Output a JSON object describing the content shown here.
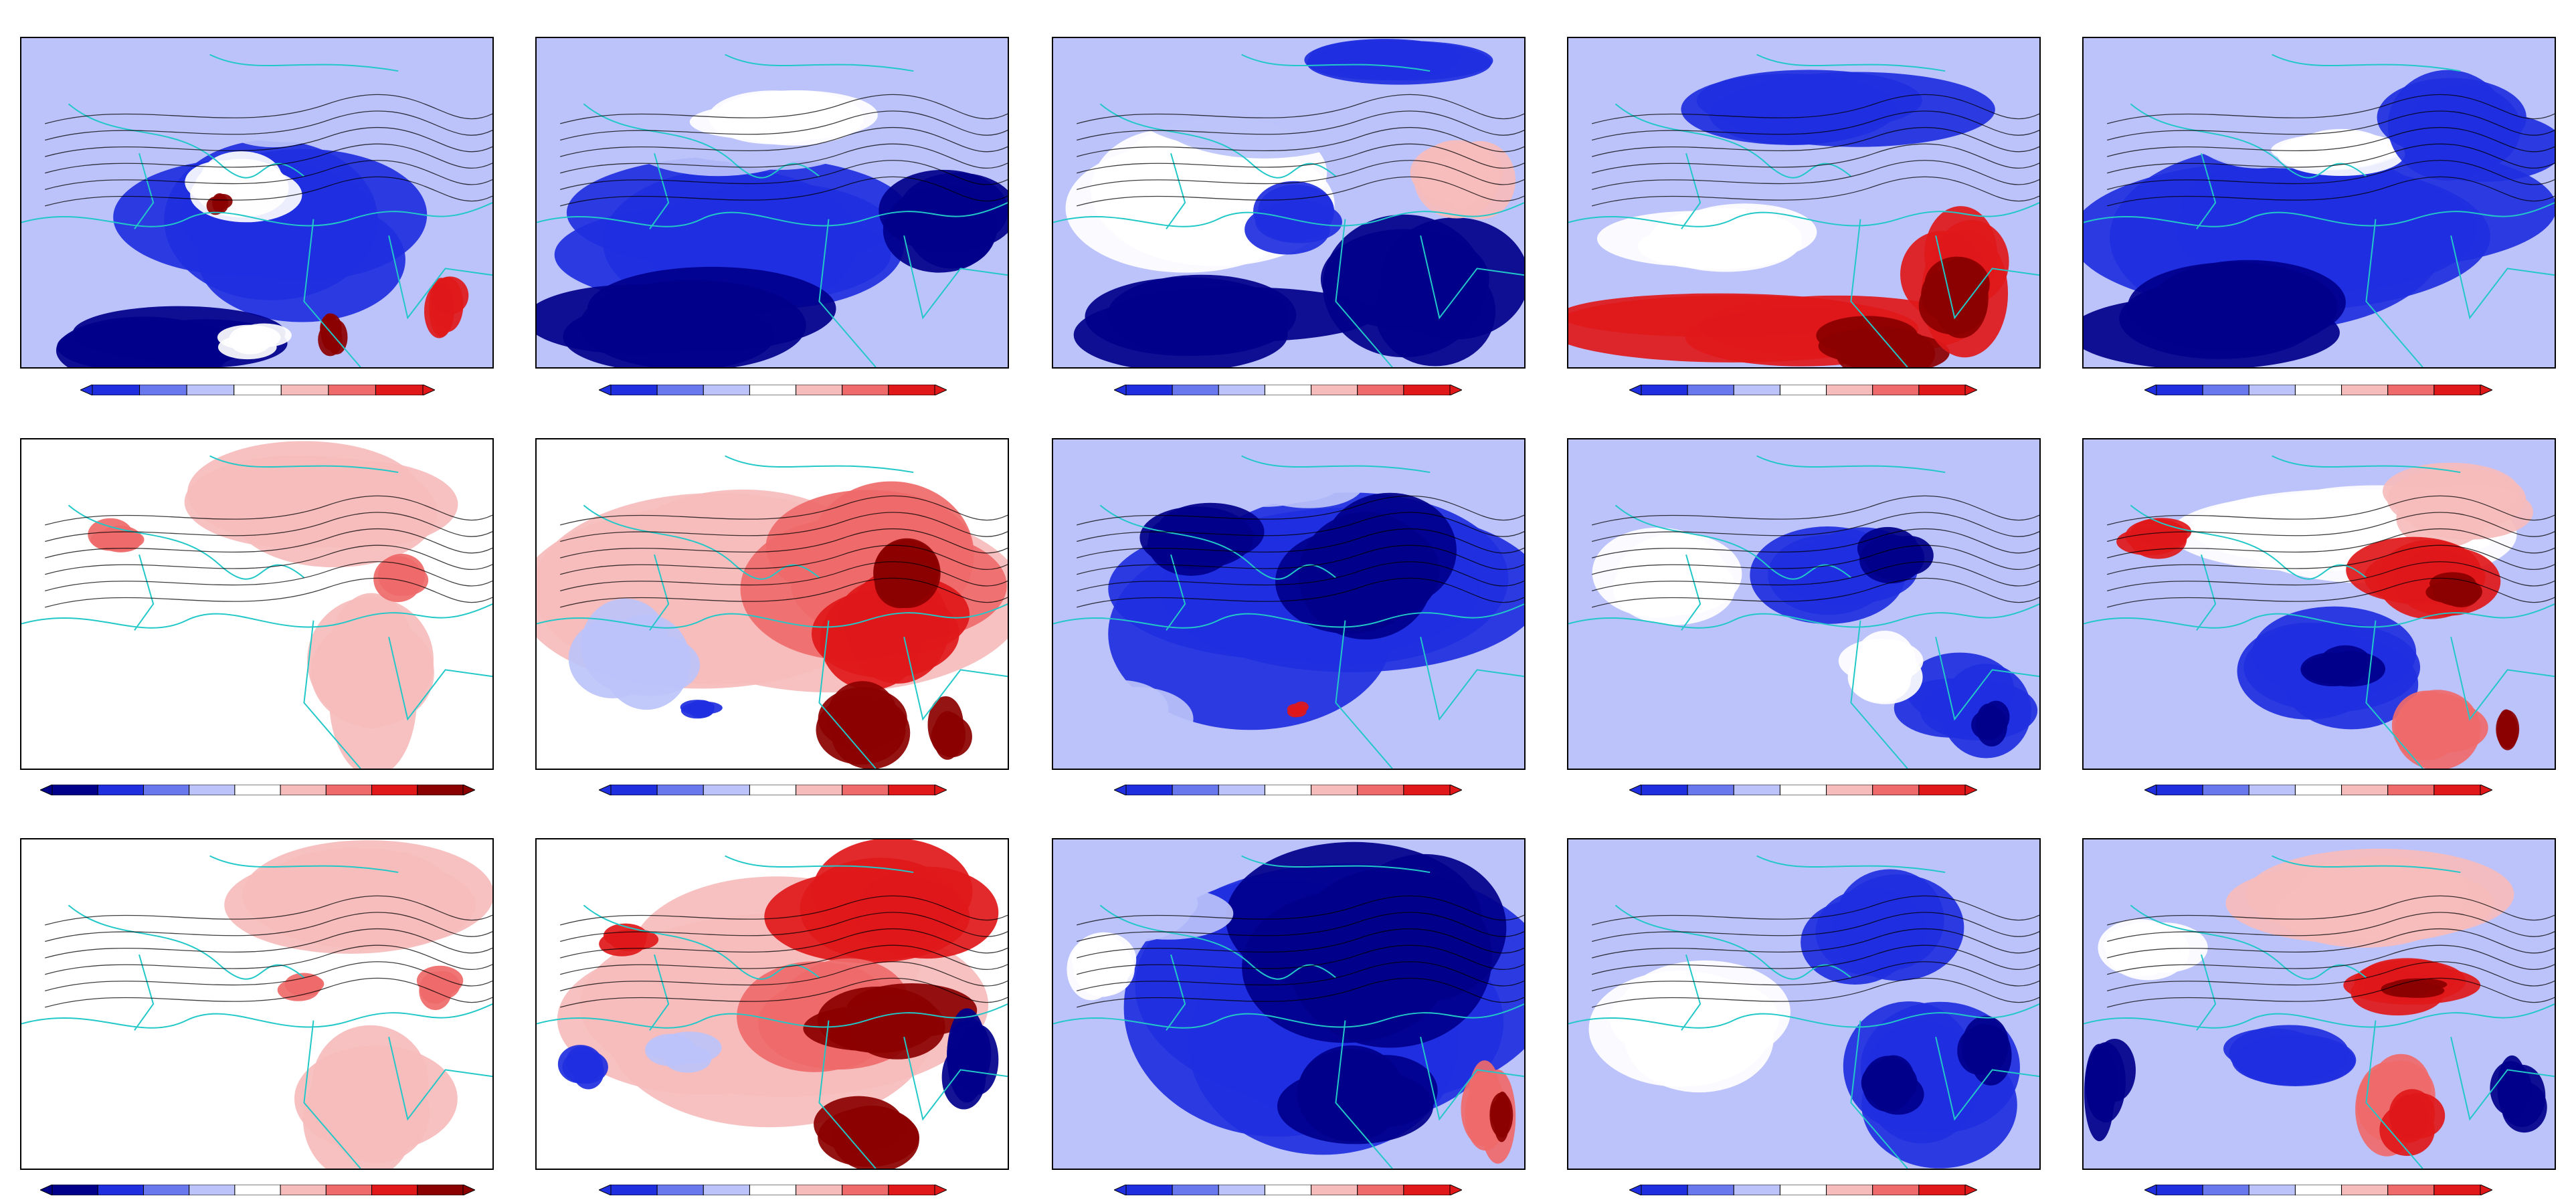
{
  "colors": {
    "dark_blue": "#00008b",
    "blue": "#1f2fe0",
    "mid_blue": "#6a78ee",
    "light_blue": "#bcc3fa",
    "white": "#ffffff",
    "light_red": "#f6bcbc",
    "mid_red": "#ef6a6a",
    "red": "#e0181a",
    "dark_red": "#8b0000",
    "contour": "#000000",
    "coastline": "#22c8c8"
  },
  "panels": [
    {
      "id": "r1c1",
      "tone": "blue",
      "regions": [
        [
          "blue",
          0.5,
          0.6,
          0.7,
          0.5
        ],
        [
          "dark_blue",
          0.35,
          0.92,
          0.55,
          0.22
        ],
        [
          "light_blue",
          0.55,
          0.2,
          0.4,
          0.3
        ],
        [
          "white",
          0.45,
          0.45,
          0.25,
          0.18
        ],
        [
          "dark_red",
          0.42,
          0.5,
          0.05,
          0.06
        ],
        [
          "red",
          0.9,
          0.8,
          0.08,
          0.18
        ],
        [
          "white",
          0.5,
          0.92,
          0.15,
          0.12
        ],
        [
          "dark_red",
          0.66,
          0.9,
          0.06,
          0.12
        ]
      ]
    },
    {
      "id": "r1c2",
      "tone": "blue",
      "regions": [
        [
          "blue",
          0.5,
          0.6,
          0.8,
          0.5
        ],
        [
          "dark_blue",
          0.3,
          0.85,
          0.6,
          0.35
        ],
        [
          "light_blue",
          0.45,
          0.25,
          0.6,
          0.3
        ],
        [
          "white",
          0.55,
          0.25,
          0.4,
          0.18
        ],
        [
          "dark_blue",
          0.85,
          0.55,
          0.3,
          0.3
        ]
      ]
    },
    {
      "id": "r1c3",
      "tone": "mixed",
      "regions": [
        [
          "dark_blue",
          0.3,
          0.88,
          0.6,
          0.25
        ],
        [
          "dark_blue",
          0.8,
          0.78,
          0.4,
          0.45
        ],
        [
          "white",
          0.3,
          0.45,
          0.55,
          0.45
        ],
        [
          "light_blue",
          0.5,
          0.2,
          0.6,
          0.3
        ],
        [
          "blue",
          0.5,
          0.55,
          0.2,
          0.2
        ],
        [
          "light_red",
          0.88,
          0.45,
          0.22,
          0.25
        ],
        [
          "blue",
          0.7,
          0.08,
          0.4,
          0.15
        ]
      ]
    },
    {
      "id": "r1c4",
      "tone": "mixed",
      "regions": [
        [
          "light_blue",
          0.5,
          0.4,
          0.9,
          0.5
        ],
        [
          "blue",
          0.55,
          0.2,
          0.6,
          0.25
        ],
        [
          "white",
          0.35,
          0.6,
          0.5,
          0.2
        ],
        [
          "red",
          0.45,
          0.88,
          0.8,
          0.22
        ],
        [
          "dark_red",
          0.65,
          0.93,
          0.35,
          0.18
        ],
        [
          "red",
          0.82,
          0.72,
          0.22,
          0.4
        ],
        [
          "dark_red",
          0.82,
          0.78,
          0.15,
          0.25
        ]
      ]
    },
    {
      "id": "r1c5",
      "tone": "blue",
      "regions": [
        [
          "blue",
          0.5,
          0.5,
          0.9,
          0.6
        ],
        [
          "dark_blue",
          0.35,
          0.85,
          0.6,
          0.3
        ],
        [
          "light_blue",
          0.45,
          0.3,
          0.5,
          0.3
        ],
        [
          "white",
          0.5,
          0.35,
          0.3,
          0.15
        ],
        [
          "blue",
          0.8,
          0.3,
          0.35,
          0.35
        ]
      ]
    },
    {
      "id": "r2c1",
      "tone": "red",
      "regions": [
        [
          "white",
          0.4,
          0.6,
          0.8,
          0.7
        ],
        [
          "light_red",
          0.65,
          0.2,
          0.6,
          0.35
        ],
        [
          "light_red",
          0.75,
          0.72,
          0.3,
          0.5
        ],
        [
          "mid_red",
          0.2,
          0.3,
          0.12,
          0.1
        ],
        [
          "mid_red",
          0.82,
          0.42,
          0.12,
          0.15
        ]
      ]
    },
    {
      "id": "r2c2",
      "tone": "red",
      "regions": [
        [
          "light_red",
          0.5,
          0.4,
          0.9,
          0.6
        ],
        [
          "mid_red",
          0.7,
          0.4,
          0.5,
          0.45
        ],
        [
          "red",
          0.72,
          0.55,
          0.35,
          0.35
        ],
        [
          "dark_red",
          0.78,
          0.4,
          0.18,
          0.22
        ],
        [
          "dark_red",
          0.72,
          0.85,
          0.2,
          0.25
        ],
        [
          "dark_red",
          0.88,
          0.88,
          0.1,
          0.2
        ],
        [
          "light_blue",
          0.2,
          0.65,
          0.25,
          0.3
        ],
        [
          "blue",
          0.35,
          0.82,
          0.08,
          0.06
        ]
      ]
    },
    {
      "id": "r2c3",
      "tone": "blue",
      "regions": [
        [
          "blue",
          0.5,
          0.5,
          0.9,
          0.7
        ],
        [
          "dark_blue",
          0.7,
          0.4,
          0.45,
          0.5
        ],
        [
          "dark_blue",
          0.3,
          0.3,
          0.25,
          0.2
        ],
        [
          "light_blue",
          0.15,
          0.85,
          0.25,
          0.25
        ],
        [
          "light_blue",
          0.5,
          0.15,
          0.3,
          0.15
        ],
        [
          "red",
          0.52,
          0.82,
          0.04,
          0.05
        ]
      ]
    },
    {
      "id": "r2c4",
      "tone": "mixed",
      "regions": [
        [
          "light_blue",
          0.5,
          0.5,
          0.9,
          0.7
        ],
        [
          "white",
          0.25,
          0.45,
          0.35,
          0.35
        ],
        [
          "blue",
          0.6,
          0.4,
          0.35,
          0.3
        ],
        [
          "dark_blue",
          0.7,
          0.35,
          0.15,
          0.15
        ],
        [
          "blue",
          0.85,
          0.8,
          0.25,
          0.3
        ],
        [
          "white",
          0.65,
          0.7,
          0.2,
          0.2
        ],
        [
          "dark_blue",
          0.9,
          0.85,
          0.08,
          0.15
        ]
      ]
    },
    {
      "id": "r2c5",
      "tone": "mixed",
      "regions": [
        [
          "light_blue",
          0.5,
          0.6,
          0.9,
          0.6
        ],
        [
          "white",
          0.5,
          0.25,
          0.7,
          0.3
        ],
        [
          "light_red",
          0.8,
          0.2,
          0.3,
          0.25
        ],
        [
          "red",
          0.75,
          0.4,
          0.3,
          0.25
        ],
        [
          "dark_red",
          0.78,
          0.45,
          0.12,
          0.1
        ],
        [
          "red",
          0.15,
          0.3,
          0.15,
          0.12
        ],
        [
          "blue",
          0.5,
          0.7,
          0.4,
          0.3
        ],
        [
          "dark_blue",
          0.55,
          0.7,
          0.15,
          0.12
        ],
        [
          "mid_red",
          0.75,
          0.85,
          0.2,
          0.25
        ],
        [
          "dark_red",
          0.9,
          0.88,
          0.05,
          0.12
        ]
      ]
    },
    {
      "id": "r3c1",
      "tone": "red",
      "regions": [
        [
          "white",
          0.4,
          0.55,
          0.8,
          0.8
        ],
        [
          "light_red",
          0.7,
          0.2,
          0.55,
          0.35
        ],
        [
          "light_red",
          0.75,
          0.8,
          0.35,
          0.4
        ],
        [
          "mid_red",
          0.6,
          0.45,
          0.1,
          0.08
        ],
        [
          "mid_red",
          0.88,
          0.45,
          0.1,
          0.12
        ]
      ]
    },
    {
      "id": "r3c2",
      "tone": "red",
      "regions": [
        [
          "light_red",
          0.5,
          0.45,
          0.95,
          0.7
        ],
        [
          "red",
          0.75,
          0.2,
          0.5,
          0.35
        ],
        [
          "mid_red",
          0.6,
          0.5,
          0.4,
          0.35
        ],
        [
          "dark_red",
          0.75,
          0.55,
          0.3,
          0.22
        ],
        [
          "dark_red",
          0.7,
          0.9,
          0.22,
          0.2
        ],
        [
          "dark_blue",
          0.92,
          0.7,
          0.1,
          0.3
        ],
        [
          "blue",
          0.1,
          0.7,
          0.1,
          0.15
        ],
        [
          "red",
          0.2,
          0.3,
          0.12,
          0.1
        ],
        [
          "light_blue",
          0.3,
          0.65,
          0.15,
          0.1
        ]
      ]
    },
    {
      "id": "r3c3",
      "tone": "blue",
      "regions": [
        [
          "blue",
          0.5,
          0.5,
          0.95,
          0.9
        ],
        [
          "dark_blue",
          0.7,
          0.3,
          0.55,
          0.55
        ],
        [
          "dark_blue",
          0.65,
          0.8,
          0.35,
          0.35
        ],
        [
          "light_blue",
          0.2,
          0.2,
          0.3,
          0.2
        ],
        [
          "white",
          0.1,
          0.4,
          0.15,
          0.2
        ],
        [
          "mid_red",
          0.93,
          0.8,
          0.1,
          0.3
        ],
        [
          "dark_red",
          0.95,
          0.85,
          0.05,
          0.15
        ]
      ]
    },
    {
      "id": "r3c4",
      "tone": "mixed",
      "regions": [
        [
          "light_blue",
          0.5,
          0.5,
          0.9,
          0.8
        ],
        [
          "white",
          0.25,
          0.55,
          0.4,
          0.4
        ],
        [
          "blue",
          0.65,
          0.3,
          0.35,
          0.35
        ],
        [
          "blue",
          0.75,
          0.75,
          0.35,
          0.4
        ],
        [
          "dark_blue",
          0.68,
          0.75,
          0.12,
          0.2
        ],
        [
          "dark_blue",
          0.88,
          0.65,
          0.1,
          0.2
        ]
      ]
    },
    {
      "id": "r3c5",
      "tone": "mixed",
      "regions": [
        [
          "light_blue",
          0.5,
          0.6,
          0.9,
          0.6
        ],
        [
          "light_red",
          0.6,
          0.2,
          0.6,
          0.3
        ],
        [
          "red",
          0.7,
          0.45,
          0.3,
          0.15
        ],
        [
          "dark_red",
          0.7,
          0.45,
          0.12,
          0.06
        ],
        [
          "mid_red",
          0.65,
          0.8,
          0.2,
          0.3
        ],
        [
          "red",
          0.7,
          0.85,
          0.12,
          0.2
        ],
        [
          "dark_blue",
          0.05,
          0.75,
          0.1,
          0.3
        ],
        [
          "blue",
          0.4,
          0.65,
          0.3,
          0.2
        ],
        [
          "dark_blue",
          0.92,
          0.78,
          0.1,
          0.25
        ],
        [
          "white",
          0.15,
          0.35,
          0.2,
          0.2
        ]
      ]
    }
  ],
  "colorbar_scales": {
    "short": [
      "blue",
      "mid_blue",
      "light_blue",
      "white",
      "light_red",
      "mid_red",
      "red"
    ],
    "long": [
      "dark_blue",
      "blue",
      "mid_blue",
      "light_blue",
      "white",
      "light_red",
      "mid_red",
      "red",
      "dark_red"
    ]
  }
}
